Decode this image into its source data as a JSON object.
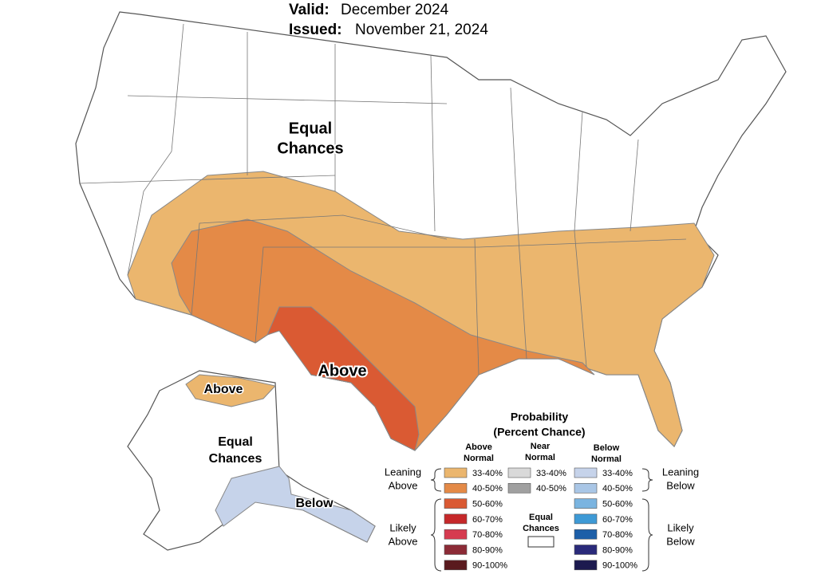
{
  "header": {
    "valid_label": "Valid:",
    "valid": "December 2024",
    "issued_label": "Issued:",
    "issued": "November 21, 2024"
  },
  "map_labels": {
    "conus_equal": [
      "Equal",
      "Chances"
    ],
    "conus_above": "Above",
    "alaska_above": "Above",
    "alaska_equal": [
      "Equal",
      "Chances"
    ],
    "alaska_below": "Below"
  },
  "legend": {
    "title": [
      "Probability",
      "(Percent Chance)"
    ],
    "columns": [
      {
        "heading": [
          "Above",
          "Normal"
        ],
        "items": [
          {
            "label": "33-40%",
            "color": "#ebb66e"
          },
          {
            "label": "40-50%",
            "color": "#e48a47"
          },
          {
            "label": "50-60%",
            "color": "#da5a33"
          },
          {
            "label": "60-70%",
            "color": "#c6282a"
          },
          {
            "label": "70-80%",
            "color": "#d63b50"
          },
          {
            "label": "80-90%",
            "color": "#8c2b36"
          },
          {
            "label": "90-100%",
            "color": "#5a1a1e"
          }
        ]
      },
      {
        "heading": [
          "Near",
          "Normal"
        ],
        "items": [
          {
            "label": "33-40%",
            "color": "#d9d9d9"
          },
          {
            "label": "40-50%",
            "color": "#a0a0a0"
          }
        ]
      },
      {
        "heading": [
          "Below",
          "Normal"
        ],
        "items": [
          {
            "label": "33-40%",
            "color": "#c6d3ea"
          },
          {
            "label": "40-50%",
            "color": "#a9c6e6"
          },
          {
            "label": "50-60%",
            "color": "#7ab4e0"
          },
          {
            "label": "60-70%",
            "color": "#3e9ad6"
          },
          {
            "label": "70-80%",
            "color": "#1d5fa8"
          },
          {
            "label": "80-90%",
            "color": "#2a2a7a"
          },
          {
            "label": "90-100%",
            "color": "#1c1a4f"
          }
        ]
      }
    ],
    "equal_chances": [
      "Equal",
      "Chances"
    ],
    "side_labels": {
      "leaning_above": [
        "Leaning",
        "Above"
      ],
      "likely_above": [
        "Likely",
        "Above"
      ],
      "leaning_below": [
        "Leaning",
        "Below"
      ],
      "likely_below": [
        "Likely",
        "Below"
      ]
    }
  }
}
